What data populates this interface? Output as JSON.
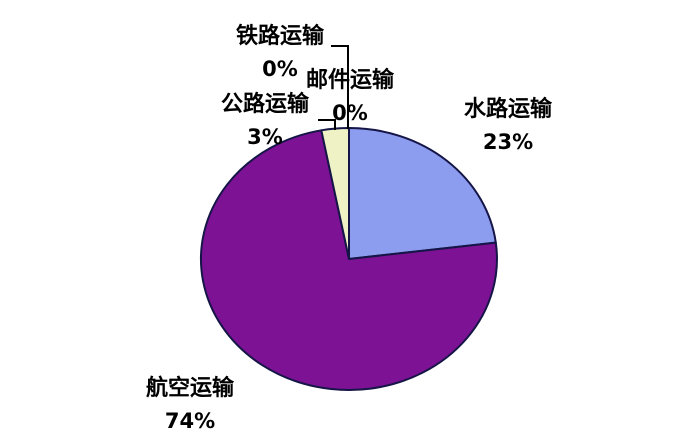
{
  "chart_data": {
    "type": "pie",
    "title": "",
    "categories": [
      "水路运输",
      "航空运输",
      "公路运输",
      "邮件运输",
      "铁路运输"
    ],
    "keys": [
      "water",
      "air",
      "road",
      "mail",
      "railway"
    ],
    "values": [
      23,
      74,
      3,
      0,
      0
    ],
    "percent_labels": [
      "23%",
      "74%",
      "3%",
      "0%",
      "0%"
    ],
    "colors": [
      "#8c9cee",
      "#7e1295",
      "#eef2c4",
      null,
      null
    ],
    "slice_stroke": "#151547",
    "leader_line_color": "#000000",
    "start_angle_deg": 0,
    "direction": "clockwise",
    "legend_position": "none",
    "label_style": "category name and percent beside each slice, leader lines for small slices",
    "background": "#ffffff",
    "text_color": "#000000"
  },
  "labels": {
    "railway": {
      "name": "铁路运输",
      "value": "0%"
    },
    "mail": {
      "name": "邮件运输",
      "value": "0%"
    },
    "road": {
      "name": "公路运输",
      "value": "3%"
    },
    "water": {
      "name": "水路运输",
      "value": "23%"
    },
    "air": {
      "name": "航空运输",
      "value": "74%"
    }
  }
}
